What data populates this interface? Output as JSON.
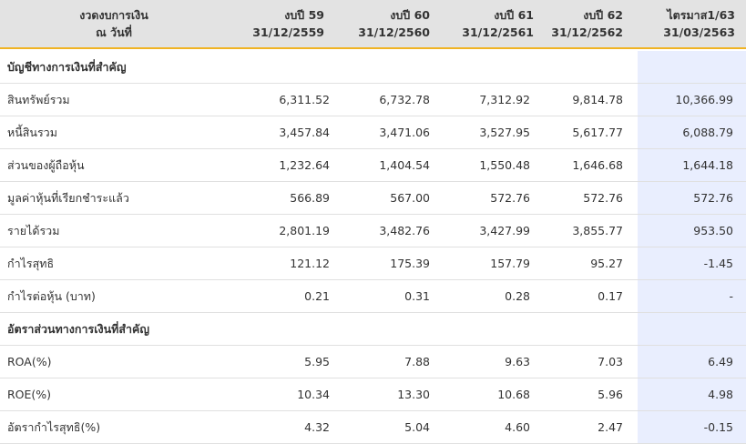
{
  "header": {
    "col0": {
      "line1": "งวดงบการเงิน",
      "line2": "ณ วันที่"
    },
    "col1": {
      "line1": "งบปี 59",
      "line2": "31/12/2559"
    },
    "col2": {
      "line1": "งบปี 60",
      "line2": "31/12/2560"
    },
    "col3": {
      "line1": "งบปี 61",
      "line2": "31/12/2561"
    },
    "col4": {
      "line1": "งบปี 62",
      "line2": "31/12/2562"
    },
    "col5": {
      "line1": "ไตรมาส1/63",
      "line2": "31/03/2563"
    }
  },
  "sections": [
    {
      "title": "บัญชีทางการเงินที่สำคัญ",
      "rows": [
        {
          "label": "สินทรัพย์รวม",
          "values": [
            "6,311.52",
            "6,732.78",
            "7,312.92",
            "9,814.78",
            "10,366.99"
          ]
        },
        {
          "label": "หนี้สินรวม",
          "values": [
            "3,457.84",
            "3,471.06",
            "3,527.95",
            "5,617.77",
            "6,088.79"
          ]
        },
        {
          "label": "ส่วนของผู้ถือหุ้น",
          "values": [
            "1,232.64",
            "1,404.54",
            "1,550.48",
            "1,646.68",
            "1,644.18"
          ]
        },
        {
          "label": "มูลค่าหุ้นที่เรียกชำระแล้ว",
          "values": [
            "566.89",
            "567.00",
            "572.76",
            "572.76",
            "572.76"
          ]
        },
        {
          "label": "รายได้รวม",
          "values": [
            "2,801.19",
            "3,482.76",
            "3,427.99",
            "3,855.77",
            "953.50"
          ]
        },
        {
          "label": "กำไรสุทธิ",
          "values": [
            "121.12",
            "175.39",
            "157.79",
            "95.27",
            "-1.45"
          ]
        },
        {
          "label": "กำไรต่อหุ้น (บาท)",
          "values": [
            "0.21",
            "0.31",
            "0.28",
            "0.17",
            "-"
          ]
        }
      ]
    },
    {
      "title": "อัตราส่วนทางการเงินที่สำคัญ",
      "rows": [
        {
          "label": "ROA(%)",
          "values": [
            "5.95",
            "7.88",
            "9.63",
            "7.03",
            "6.49"
          ]
        },
        {
          "label": "ROE(%)",
          "values": [
            "10.34",
            "13.30",
            "10.68",
            "5.96",
            "4.98"
          ]
        },
        {
          "label": "อัตรากำไรสุทธิ(%)",
          "values": [
            "4.32",
            "5.04",
            "4.60",
            "2.47",
            "-0.15"
          ]
        }
      ]
    }
  ],
  "colors": {
    "header_bg": "#e3e3e3",
    "header_border": "#f0b323",
    "highlight_column": "#e9eefe",
    "row_divider": "#e0e0e0"
  }
}
